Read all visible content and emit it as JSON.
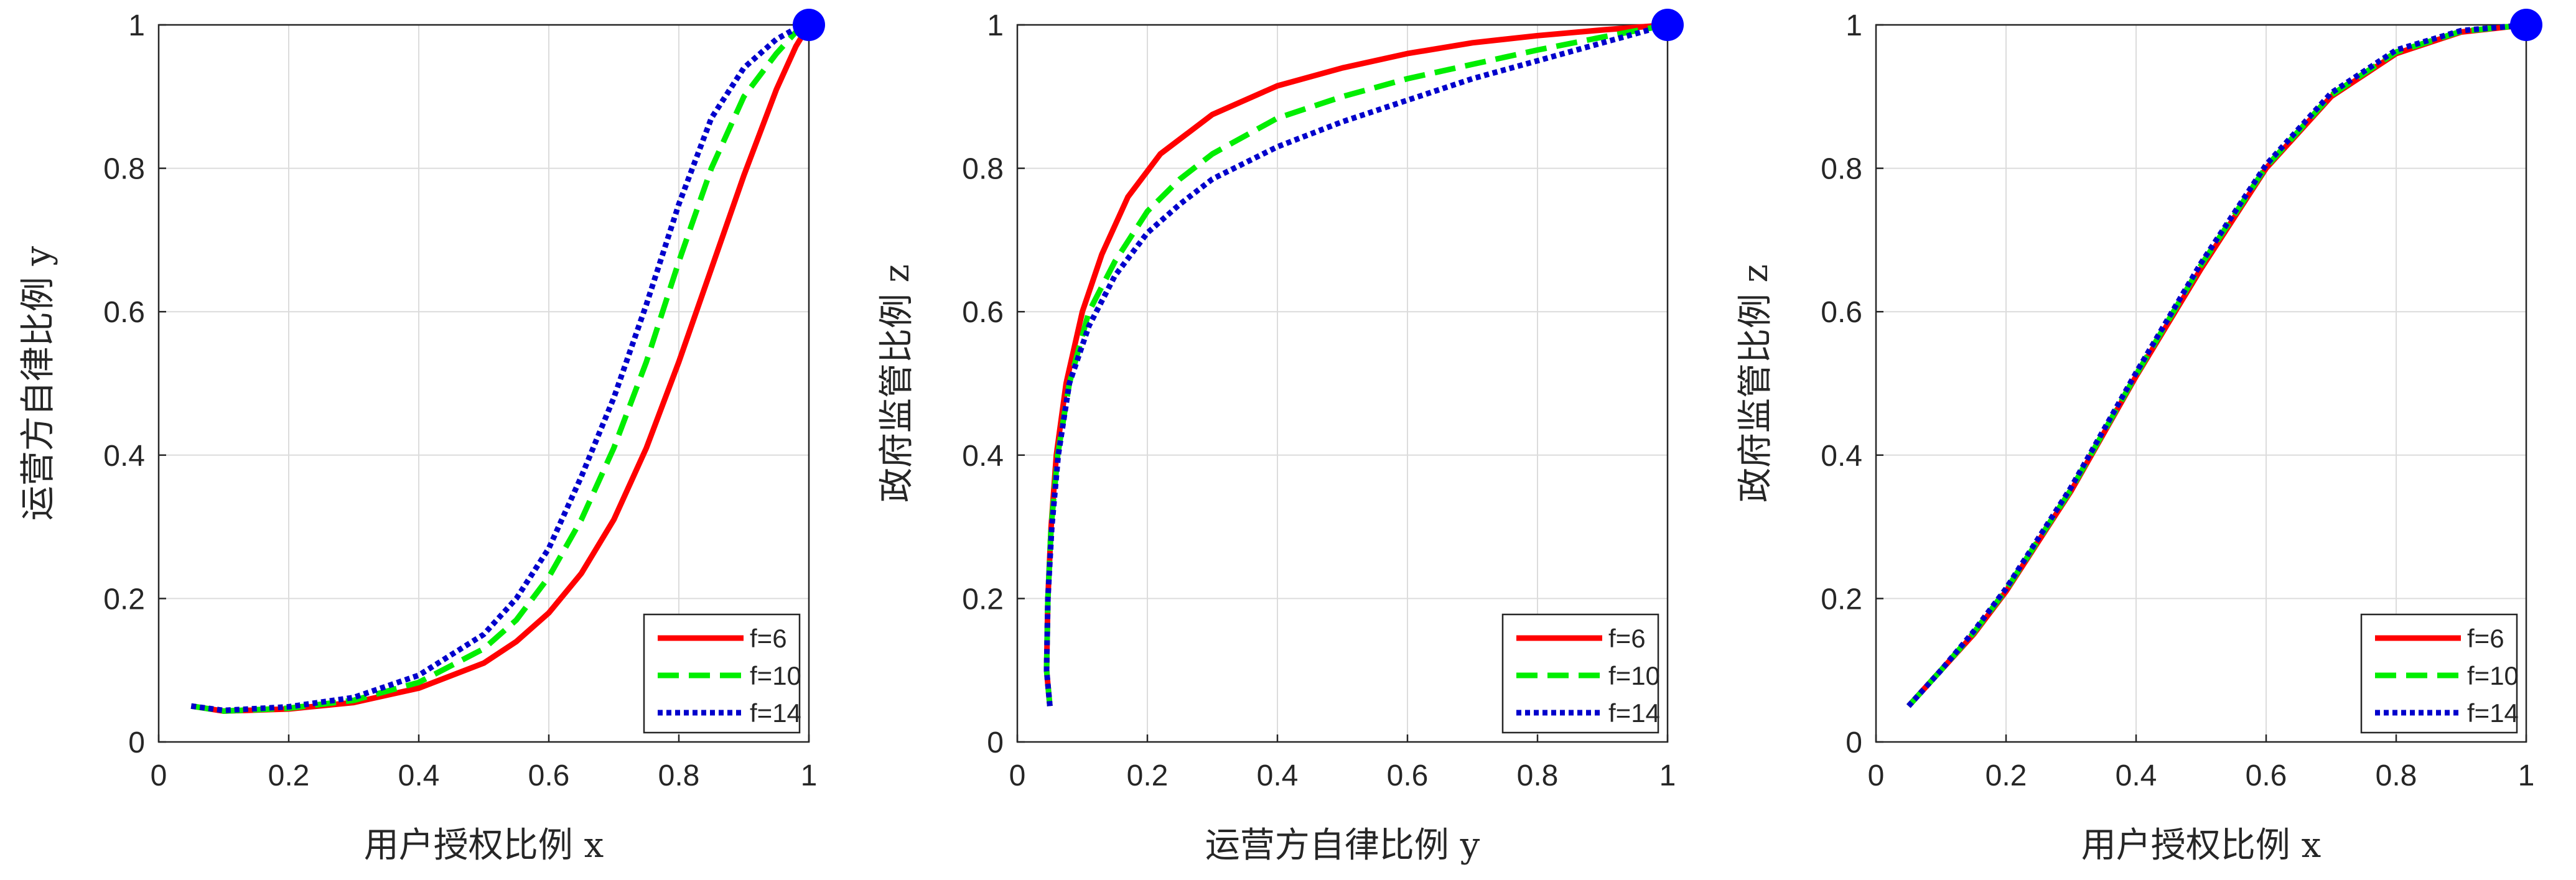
{
  "chart_data": [
    {
      "type": "line",
      "xlabel": "用户授权比例  x",
      "ylabel": "运营方自律比例  y",
      "xlim": [
        0,
        1
      ],
      "ylim": [
        0,
        1
      ],
      "xticks": [
        "0",
        "0.2",
        "0.4",
        "0.6",
        "0.8",
        "1"
      ],
      "yticks": [
        "0",
        "0.2",
        "0.4",
        "0.6",
        "0.8",
        "1"
      ],
      "grid": true,
      "legend": "bottom-right",
      "endpoint": {
        "x": 1,
        "y": 1,
        "color": "#0000ff"
      },
      "series": [
        {
          "name": "f=6",
          "color": "#ff0000",
          "style": "solid",
          "x": [
            0.05,
            0.1,
            0.2,
            0.3,
            0.4,
            0.5,
            0.55,
            0.6,
            0.65,
            0.7,
            0.75,
            0.8,
            0.85,
            0.9,
            0.95,
            0.98,
            1.0
          ],
          "y": [
            0.05,
            0.043,
            0.046,
            0.055,
            0.075,
            0.11,
            0.14,
            0.18,
            0.235,
            0.31,
            0.41,
            0.53,
            0.66,
            0.79,
            0.91,
            0.97,
            1.0
          ]
        },
        {
          "name": "f=10",
          "color": "#00ee00",
          "style": "dashed",
          "x": [
            0.05,
            0.1,
            0.2,
            0.3,
            0.4,
            0.5,
            0.55,
            0.6,
            0.65,
            0.7,
            0.75,
            0.8,
            0.85,
            0.9,
            0.95,
            0.98,
            1.0
          ],
          "y": [
            0.05,
            0.043,
            0.047,
            0.058,
            0.083,
            0.13,
            0.17,
            0.23,
            0.31,
            0.41,
            0.53,
            0.67,
            0.8,
            0.9,
            0.96,
            0.99,
            1.0
          ]
        },
        {
          "name": "f=14",
          "color": "#0000cc",
          "style": "dotted",
          "x": [
            0.05,
            0.1,
            0.2,
            0.3,
            0.4,
            0.5,
            0.55,
            0.6,
            0.65,
            0.7,
            0.75,
            0.8,
            0.85,
            0.9,
            0.95,
            0.98,
            1.0
          ],
          "y": [
            0.05,
            0.044,
            0.049,
            0.062,
            0.093,
            0.15,
            0.2,
            0.27,
            0.37,
            0.48,
            0.61,
            0.75,
            0.87,
            0.94,
            0.98,
            0.995,
            1.0
          ]
        }
      ]
    },
    {
      "type": "line",
      "xlabel": "运营方自律比例  y",
      "ylabel": "政府监管比例  z",
      "xlim": [
        0,
        1
      ],
      "ylim": [
        0,
        1
      ],
      "xticks": [
        "0",
        "0.2",
        "0.4",
        "0.6",
        "0.8",
        "1"
      ],
      "yticks": [
        "0",
        "0.2",
        "0.4",
        "0.6",
        "0.8",
        "1"
      ],
      "grid": true,
      "legend": "bottom-right",
      "endpoint": {
        "x": 1,
        "y": 1,
        "color": "#0000ff"
      },
      "series": [
        {
          "name": "f=6",
          "color": "#ff0000",
          "style": "solid",
          "x": [
            0.05,
            0.045,
            0.047,
            0.052,
            0.06,
            0.075,
            0.1,
            0.13,
            0.17,
            0.22,
            0.3,
            0.4,
            0.5,
            0.6,
            0.7,
            0.8,
            0.9,
            1.0
          ],
          "y": [
            0.05,
            0.1,
            0.2,
            0.3,
            0.4,
            0.5,
            0.6,
            0.68,
            0.76,
            0.82,
            0.875,
            0.915,
            0.94,
            0.96,
            0.975,
            0.985,
            0.993,
            1.0
          ]
        },
        {
          "name": "f=10",
          "color": "#00ee00",
          "style": "dashed",
          "x": [
            0.05,
            0.045,
            0.047,
            0.052,
            0.062,
            0.08,
            0.11,
            0.15,
            0.2,
            0.25,
            0.3,
            0.4,
            0.5,
            0.6,
            0.7,
            0.8,
            0.9,
            1.0
          ],
          "y": [
            0.05,
            0.1,
            0.2,
            0.3,
            0.4,
            0.5,
            0.6,
            0.67,
            0.74,
            0.785,
            0.82,
            0.87,
            0.9,
            0.925,
            0.945,
            0.965,
            0.983,
            1.0
          ]
        },
        {
          "name": "f=14",
          "color": "#0000cc",
          "style": "dotted",
          "x": [
            0.05,
            0.045,
            0.047,
            0.053,
            0.063,
            0.08,
            0.11,
            0.15,
            0.2,
            0.25,
            0.3,
            0.4,
            0.5,
            0.6,
            0.7,
            0.8,
            0.9,
            1.0
          ],
          "y": [
            0.05,
            0.1,
            0.2,
            0.3,
            0.4,
            0.5,
            0.58,
            0.65,
            0.71,
            0.75,
            0.785,
            0.83,
            0.865,
            0.895,
            0.925,
            0.95,
            0.975,
            1.0
          ]
        }
      ]
    },
    {
      "type": "line",
      "xlabel": "用户授权比例  x",
      "ylabel": "政府监管比例  z",
      "xlim": [
        0,
        1
      ],
      "ylim": [
        0,
        1
      ],
      "xticks": [
        "0",
        "0.2",
        "0.4",
        "0.6",
        "0.8",
        "1"
      ],
      "yticks": [
        "0",
        "0.2",
        "0.4",
        "0.6",
        "0.8",
        "1"
      ],
      "grid": true,
      "legend": "bottom-right",
      "endpoint": {
        "x": 1,
        "y": 1,
        "color": "#0000ff"
      },
      "series": [
        {
          "name": "f=6",
          "color": "#ff0000",
          "style": "solid",
          "x": [
            0.05,
            0.1,
            0.15,
            0.2,
            0.3,
            0.4,
            0.5,
            0.6,
            0.7,
            0.8,
            0.9,
            1.0
          ],
          "y": [
            0.05,
            0.1,
            0.15,
            0.21,
            0.35,
            0.51,
            0.66,
            0.8,
            0.9,
            0.96,
            0.99,
            1.0
          ]
        },
        {
          "name": "f=10",
          "color": "#00ee00",
          "style": "dashed",
          "x": [
            0.05,
            0.1,
            0.15,
            0.2,
            0.3,
            0.4,
            0.5,
            0.6,
            0.7,
            0.8,
            0.9,
            1.0
          ],
          "y": [
            0.05,
            0.1,
            0.152,
            0.212,
            0.352,
            0.512,
            0.665,
            0.802,
            0.902,
            0.962,
            0.991,
            1.0
          ]
        },
        {
          "name": "f=14",
          "color": "#0000cc",
          "style": "dotted",
          "x": [
            0.05,
            0.1,
            0.15,
            0.2,
            0.3,
            0.4,
            0.5,
            0.6,
            0.7,
            0.8,
            0.9,
            1.0
          ],
          "y": [
            0.05,
            0.1,
            0.154,
            0.214,
            0.355,
            0.515,
            0.668,
            0.805,
            0.905,
            0.965,
            0.992,
            1.0
          ]
        }
      ]
    }
  ]
}
